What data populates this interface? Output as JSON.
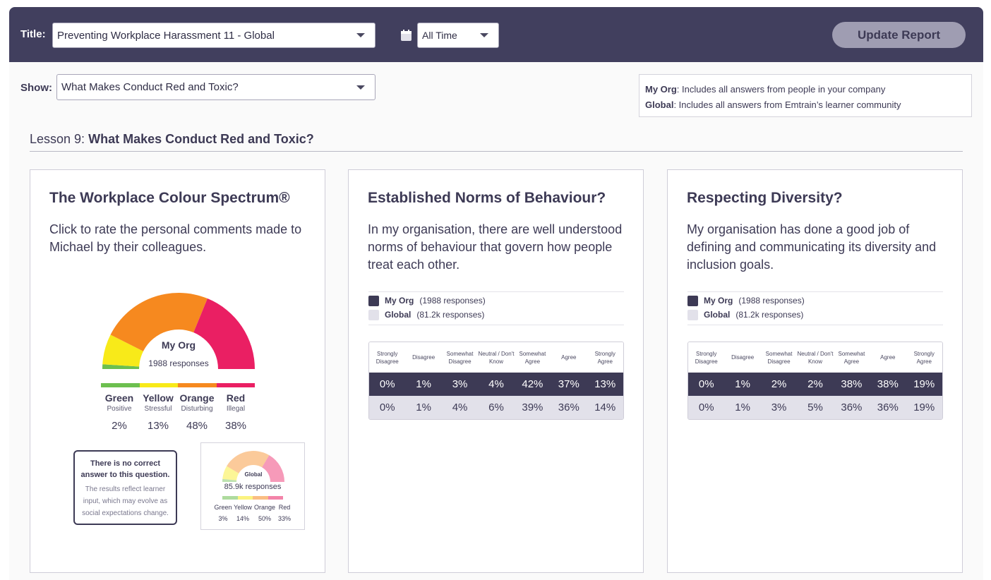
{
  "header": {
    "title_label": "Title:",
    "title_value": "Preventing Workplace Harassment 11 - Global",
    "date_value": "All Time",
    "update_label": "Update Report"
  },
  "show": {
    "label": "Show:",
    "value": "What Makes Conduct Red and Toxic?"
  },
  "legend_info": {
    "org_key": "My Org",
    "org_text": ": Includes all answers from people in your company",
    "global_key": "Global",
    "global_text": ": Includes all answers from Emtrain’s learner community"
  },
  "lesson": {
    "prefix": "Lesson 9:",
    "title": "What Makes Conduct Red and Toxic?"
  },
  "colors": {
    "green": "#6cbf4f",
    "yellow": "#f8ea19",
    "orange": "#f6891f",
    "red": "#ea1f63",
    "org": "#3d3a55",
    "global": "#e2e1ea"
  },
  "spectrum_card": {
    "title": "The Workplace Colour Spectrum®",
    "desc": "Click to rate the personal comments made to Michael by their colleagues.",
    "gauge_label": "My Org",
    "gauge_responses": "1988 responses",
    "categories": [
      {
        "name": "Green",
        "sub": "Positive",
        "pct": "2%",
        "value": 2
      },
      {
        "name": "Yellow",
        "sub": "Stressful",
        "pct": "13%",
        "value": 13
      },
      {
        "name": "Orange",
        "sub": "Disturbing",
        "pct": "48%",
        "value": 48
      },
      {
        "name": "Red",
        "sub": "Illegal",
        "pct": "38%",
        "value": 38
      }
    ],
    "note_head": "There is no correct answer to this question.",
    "note_body": "The results reflect learner input, which may evolve as social expectations change.",
    "global": {
      "label": "Global",
      "responses": "85.9k responses",
      "categories": [
        {
          "name": "Green",
          "pct": "3%",
          "value": 3
        },
        {
          "name": "Yellow",
          "pct": "14%",
          "value": 14
        },
        {
          "name": "Orange",
          "pct": "50%",
          "value": 50
        },
        {
          "name": "Red",
          "pct": "33%",
          "value": 33
        }
      ]
    }
  },
  "likert_headers": [
    "Strongly Disagree",
    "Disagree",
    "Somewhat Disagree",
    "Neutral / Don't Know",
    "Somewhat Agree",
    "Agree",
    "Strongly Agree"
  ],
  "norms_card": {
    "title": "Established Norms of Behaviour?",
    "desc": "In my organisation, there are well understood norms of behaviour that govern how people treat each other.",
    "org_label": "My Org",
    "org_count": "(1988 responses)",
    "global_label": "Global",
    "global_count": "(81.2k responses)",
    "org_row": [
      "0%",
      "1%",
      "3%",
      "4%",
      "42%",
      "37%",
      "13%"
    ],
    "global_row": [
      "0%",
      "1%",
      "4%",
      "6%",
      "39%",
      "36%",
      "14%"
    ]
  },
  "diversity_card": {
    "title": "Respecting Diversity?",
    "desc": "My organisation has done a good job of defining and communicating its diversity and inclusion goals.",
    "org_label": "My Org",
    "org_count": "(1988 responses)",
    "global_label": "Global",
    "global_count": "(81.2k responses)",
    "org_row": [
      "0%",
      "1%",
      "2%",
      "2%",
      "38%",
      "38%",
      "19%"
    ],
    "global_row": [
      "0%",
      "1%",
      "3%",
      "5%",
      "36%",
      "36%",
      "19%"
    ]
  }
}
